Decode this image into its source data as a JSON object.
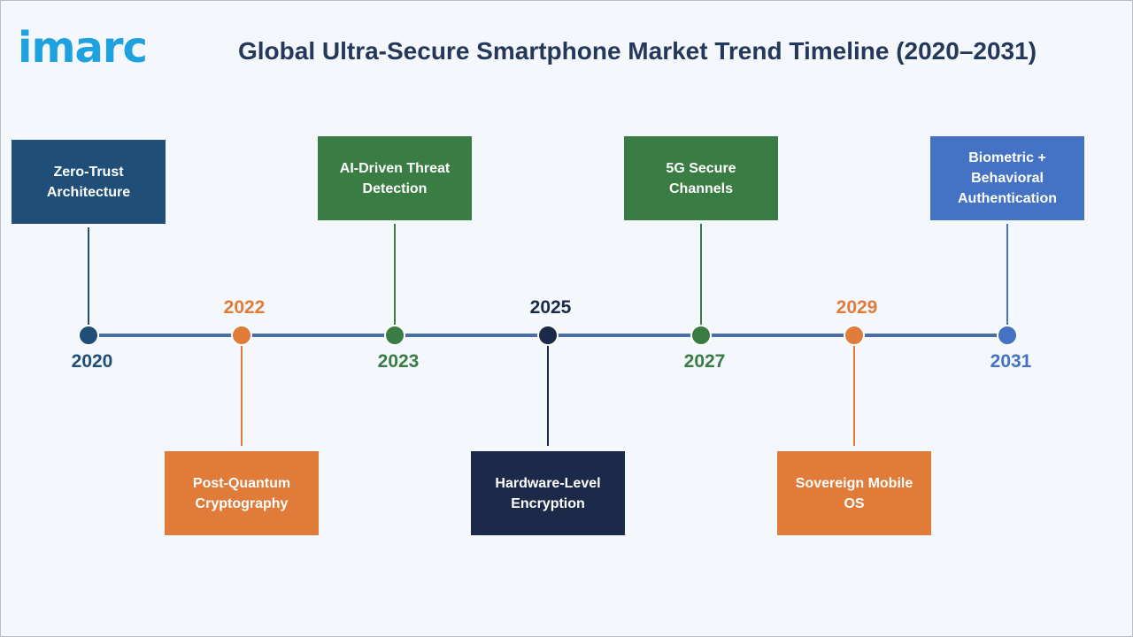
{
  "logo": {
    "text": "imarc",
    "color": "#1ea1df"
  },
  "title": "Global Ultra-Secure Smartphone Market Trend Timeline (2020–2031)",
  "timeline": {
    "line_color": "#4a6ea8",
    "milestones": [
      {
        "year": "2020",
        "label": "Zero-Trust Architecture",
        "color": "#1f4e79",
        "position": "above"
      },
      {
        "year": "2022",
        "label": "Post-Quantum Cryptography",
        "color": "#e07b39",
        "position": "below"
      },
      {
        "year": "2023",
        "label": "AI-Driven Threat Detection",
        "color": "#3a7d44",
        "position": "above"
      },
      {
        "year": "2025",
        "label": "Hardware-Level Encryption",
        "color": "#1c2a4a",
        "position": "below"
      },
      {
        "year": "2027",
        "label": "5G Secure Channels",
        "color": "#3a7d44",
        "position": "above"
      },
      {
        "year": "2029",
        "label": "Sovereign Mobile OS",
        "color": "#e07b39",
        "position": "below"
      },
      {
        "year": "2031",
        "label": "Biometric + Behavioral Authentication",
        "color": "#4472c4",
        "position": "above"
      }
    ]
  }
}
